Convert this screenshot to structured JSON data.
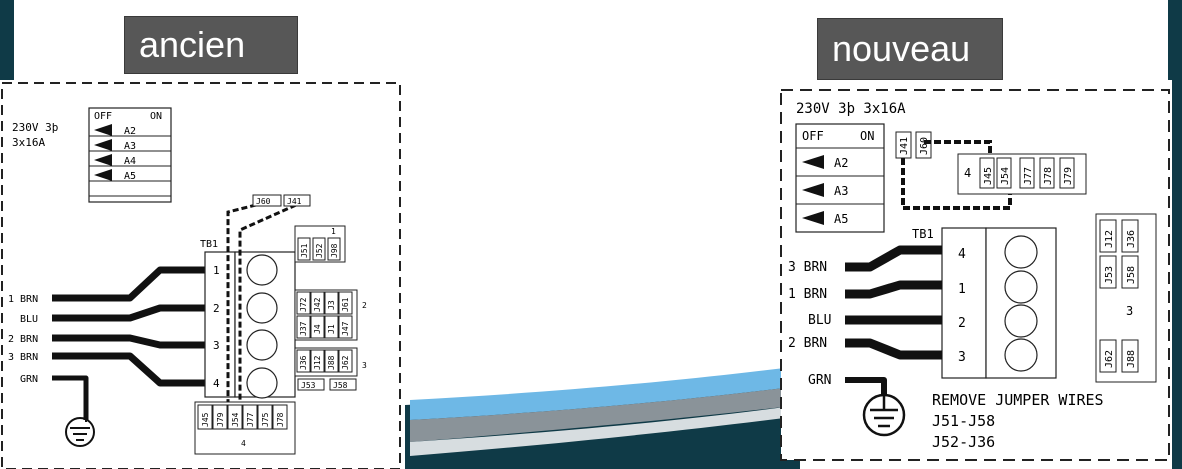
{
  "colors": {
    "frame_teal": "#0f3a47",
    "tag_bg": "#575757",
    "wave_blue": "#6eb8e6",
    "wave_gray": "#8a9399"
  },
  "old": {
    "tag": "ancien",
    "power": [
      "230V 3þ",
      "3x16A"
    ],
    "switch_header_off": "OFF",
    "switch_header_on": "ON",
    "switches": [
      "A2",
      "A3",
      "A4",
      "A5"
    ],
    "tb_label": "TB1",
    "terminals": [
      "1",
      "2",
      "3",
      "4"
    ],
    "wires": [
      "1 BRN",
      "BLU",
      "2 BRN",
      "3 BRN",
      "GRN"
    ],
    "jumper_a": "J60",
    "jumper_b": "J41",
    "group1_label": "1",
    "group1": [
      "J51",
      "J52",
      "J98"
    ],
    "group2_label": "2",
    "group2_top": [
      "J72",
      "J42",
      "J3",
      "J61"
    ],
    "group2_bot": [
      "J37",
      "J4",
      "J1",
      "J47"
    ],
    "group3_label": "3",
    "group3": [
      "J36",
      "J12",
      "J88",
      "J62"
    ],
    "group3_extra": [
      "J53",
      "J58"
    ],
    "group4_label": "4",
    "group4": [
      "J45",
      "J79",
      "J54",
      "J77",
      "J75",
      "J78"
    ]
  },
  "new": {
    "tag": "nouveau",
    "power": "230V 3þ 3x16A",
    "switch_header_off": "OFF",
    "switch_header_on": "ON",
    "switches": [
      "A2",
      "A3",
      "A5"
    ],
    "jumper_a": "J41",
    "jumper_b": "J60",
    "group4_label": "4",
    "group4": [
      "J45",
      "J54",
      "J77",
      "J78",
      "J79"
    ],
    "tb_label": "TB1",
    "terminals": [
      "4",
      "1",
      "2",
      "3"
    ],
    "wires": [
      "3 BRN",
      "1 BRN",
      "BLU",
      "2 BRN",
      "GRN"
    ],
    "group3_label": "3",
    "group3_top": [
      "J12",
      "J36"
    ],
    "group3_mid": [
      "J53",
      "J58"
    ],
    "group3_bot": [
      "J62",
      "J88"
    ],
    "note": [
      "REMOVE JUMPER WIRES",
      "J51-J58",
      "J52-J36"
    ]
  }
}
